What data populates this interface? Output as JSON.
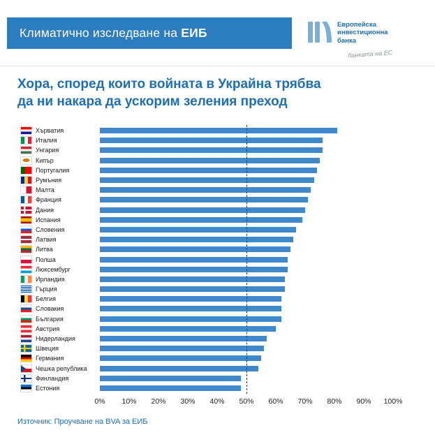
{
  "header": {
    "title_regular": "Климатично изследване на ",
    "title_bold": "ЕИБ"
  },
  "logo": {
    "lines": [
      "Европейска",
      "инвестиционна",
      "банка"
    ],
    "tagline": "банката на ЕС"
  },
  "title": {
    "line1": "Хора, според които войната в Украйна трябва",
    "line2": "да ни накара да ускорим зеления преход"
  },
  "source": "Източник: Проучване на BVA за ЕИБ",
  "colors": {
    "header_bg": "#2b7dc0",
    "accent_blue": "#1d6fb5",
    "bar_blue": "#3e88cb",
    "tagline_gray": "#8e959c"
  },
  "chart_data": {
    "type": "bar",
    "orientation": "horizontal",
    "title": "Хора, според които войната в Украйна трябва да ни накара да ускорим зеления преход",
    "xlim": [
      0,
      100
    ],
    "x_ticks": [
      "0%",
      "10%",
      "20%",
      "30%",
      "40%",
      "50%",
      "60%",
      "70%",
      "80%",
      "90%",
      "100%"
    ],
    "reference_line": 50,
    "bar_color": "#3e88cb",
    "grid": false,
    "categories": [
      "Хърватия",
      "Италия",
      "Унгария",
      "Кипър",
      "Португалия",
      "Румъния",
      "Малта",
      "Франция",
      "Дания",
      "Испания",
      "Словения",
      "Латвия",
      "Литва",
      "Полша",
      "Люксембург",
      "Ирландия",
      "Гърция",
      "Белгия",
      "Словакия",
      "България",
      "Австрия",
      "Нидерландия",
      "Швеция",
      "Германия",
      "Чешка република",
      "Финландия",
      "Естония"
    ],
    "values": [
      81,
      76,
      76,
      75,
      74,
      73,
      72,
      71,
      70,
      69,
      67,
      66,
      65,
      64,
      64,
      63,
      63,
      62,
      62,
      62,
      60,
      57,
      56,
      55,
      54,
      48,
      48
    ],
    "flags": [
      {
        "t": "h",
        "c": [
          "#ff0000",
          "#ffffff",
          "#171796"
        ]
      },
      {
        "t": "v",
        "c": [
          "#009246",
          "#ffffff",
          "#ce2b37"
        ]
      },
      {
        "t": "h",
        "c": [
          "#ce2939",
          "#ffffff",
          "#477050"
        ]
      },
      {
        "t": "mark",
        "bg": "#ffffff",
        "mark": "#d57800"
      },
      {
        "t": "v",
        "c": [
          "#006600",
          "#ff0000"
        ],
        "w": [
          2,
          3
        ]
      },
      {
        "t": "v",
        "c": [
          "#002b7f",
          "#fcd116",
          "#ce1126"
        ]
      },
      {
        "t": "v",
        "c": [
          "#ffffff",
          "#cf142b"
        ]
      },
      {
        "t": "v",
        "c": [
          "#0055a4",
          "#ffffff",
          "#ef4135"
        ]
      },
      {
        "t": "cross",
        "bg": "#c8102e",
        "cross": "#ffffff"
      },
      {
        "t": "h",
        "c": [
          "#aa151b",
          "#f1bf00",
          "#aa151b"
        ],
        "w": [
          1,
          2,
          1
        ]
      },
      {
        "t": "h",
        "c": [
          "#ffffff",
          "#005ce5",
          "#ed1c24"
        ]
      },
      {
        "t": "h",
        "c": [
          "#9e3039",
          "#ffffff",
          "#9e3039"
        ],
        "w": [
          2,
          1,
          2
        ]
      },
      {
        "t": "h",
        "c": [
          "#fdb913",
          "#006a44",
          "#c1272d"
        ]
      },
      {
        "t": "h",
        "c": [
          "#ffffff",
          "#dc143c"
        ]
      },
      {
        "t": "h",
        "c": [
          "#ed2939",
          "#ffffff",
          "#00a1de"
        ]
      },
      {
        "t": "v",
        "c": [
          "#169b62",
          "#ffffff",
          "#ff883e"
        ]
      },
      {
        "t": "h",
        "c": [
          "#0d5eaf",
          "#ffffff",
          "#0d5eaf",
          "#ffffff",
          "#0d5eaf",
          "#ffffff",
          "#0d5eaf",
          "#ffffff",
          "#0d5eaf"
        ]
      },
      {
        "t": "v",
        "c": [
          "#000000",
          "#fdda24",
          "#ef3340"
        ]
      },
      {
        "t": "h",
        "c": [
          "#ffffff",
          "#0b4ea2",
          "#ee1c25"
        ]
      },
      {
        "t": "h",
        "c": [
          "#ffffff",
          "#00966e",
          "#d62612"
        ]
      },
      {
        "t": "h",
        "c": [
          "#ed2939",
          "#ffffff",
          "#ed2939"
        ]
      },
      {
        "t": "h",
        "c": [
          "#ae1c28",
          "#ffffff",
          "#21468b"
        ]
      },
      {
        "t": "cross",
        "bg": "#006aa7",
        "cross": "#fecc00"
      },
      {
        "t": "h",
        "c": [
          "#000000",
          "#dd0000",
          "#ffce00"
        ]
      },
      {
        "t": "cz",
        "c": [
          "#ffffff",
          "#d7141a"
        ],
        "tri": "#11457e"
      },
      {
        "t": "cross",
        "bg": "#ffffff",
        "cross": "#003580"
      },
      {
        "t": "h",
        "c": [
          "#0072ce",
          "#000000",
          "#ffffff"
        ]
      }
    ]
  }
}
